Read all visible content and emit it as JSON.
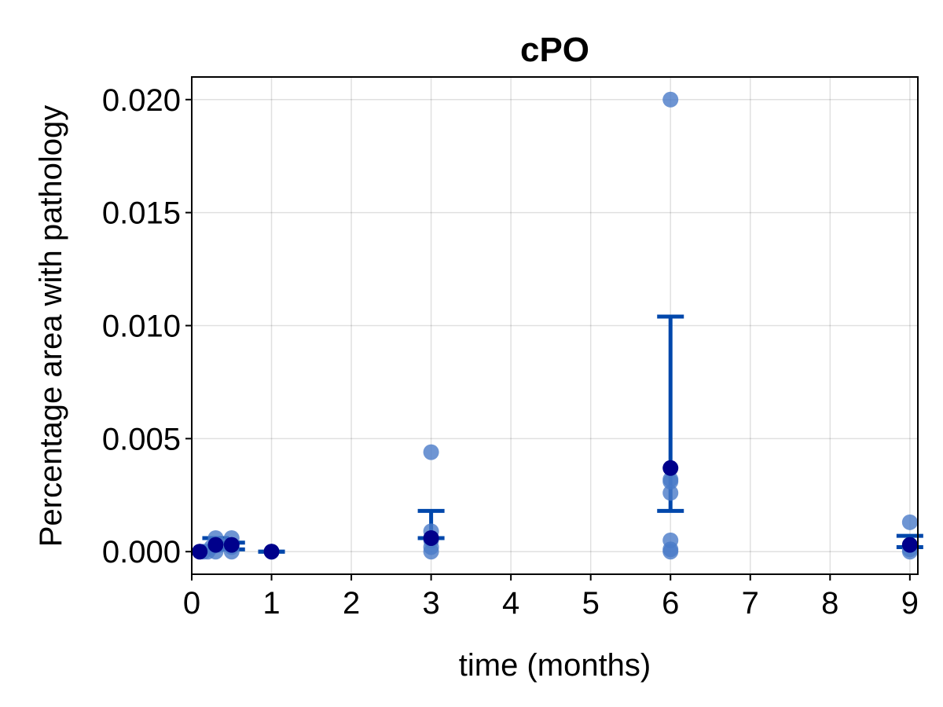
{
  "chart_data": {
    "type": "scatter",
    "title": "cPO",
    "xlabel": "time (months)",
    "ylabel": "Percentage area with pathology",
    "xlim": [
      0,
      9.1
    ],
    "ylim": [
      -0.001,
      0.021
    ],
    "xticks": [
      0,
      1,
      2,
      3,
      4,
      5,
      6,
      7,
      8,
      9
    ],
    "xtick_labels": [
      "0",
      "1",
      "2",
      "3",
      "4",
      "5",
      "6",
      "7",
      "8",
      "9"
    ],
    "yticks": [
      0,
      0.005,
      0.01,
      0.015,
      0.02
    ],
    "ytick_labels": [
      "0.000",
      "0.005",
      "0.010",
      "0.015",
      "0.020"
    ],
    "grid": true,
    "point_color": "#4a7bc8",
    "mean_point_color": "#00008b",
    "errorbar_color": "#0047ab",
    "points": [
      {
        "x": 0.1,
        "y": 0.0
      },
      {
        "x": 0.15,
        "y": 0.0
      },
      {
        "x": 0.2,
        "y": 0.0
      },
      {
        "x": 0.25,
        "y": 0.0002
      },
      {
        "x": 0.3,
        "y": 0.0006
      },
      {
        "x": 0.3,
        "y": 0.0
      },
      {
        "x": 0.35,
        "y": 0.0003
      },
      {
        "x": 0.5,
        "y": 0.0006
      },
      {
        "x": 0.5,
        "y": 0.0002
      },
      {
        "x": 0.5,
        "y": 0.0
      },
      {
        "x": 1,
        "y": 0.0
      },
      {
        "x": 1,
        "y": 0.0
      },
      {
        "x": 3,
        "y": 0.0044
      },
      {
        "x": 3,
        "y": 0.0009
      },
      {
        "x": 3,
        "y": 0.0005
      },
      {
        "x": 3,
        "y": 0.0002
      },
      {
        "x": 3,
        "y": 0.0
      },
      {
        "x": 6,
        "y": 0.02
      },
      {
        "x": 6,
        "y": 0.0032
      },
      {
        "x": 6,
        "y": 0.0031
      },
      {
        "x": 6,
        "y": 0.0026
      },
      {
        "x": 6,
        "y": 0.0005
      },
      {
        "x": 6,
        "y": 0.0001
      },
      {
        "x": 6,
        "y": 0.0
      },
      {
        "x": 9,
        "y": 0.0013
      },
      {
        "x": 9,
        "y": 0.0003
      },
      {
        "x": 9,
        "y": 0.0001
      },
      {
        "x": 9,
        "y": 0.0
      }
    ],
    "means": [
      {
        "x": 0.1,
        "y": 0.0
      },
      {
        "x": 0.3,
        "y": 0.0003
      },
      {
        "x": 0.5,
        "y": 0.0003
      },
      {
        "x": 1,
        "y": 0.0
      },
      {
        "x": 3,
        "y": 0.0006
      },
      {
        "x": 6,
        "y": 0.0037
      },
      {
        "x": 9,
        "y": 0.0003
      }
    ],
    "errorbars": [
      {
        "x": 0.3,
        "low": 0.0001,
        "high": 0.0006
      },
      {
        "x": 0.5,
        "low": 0.0001,
        "high": 0.0004
      },
      {
        "x": 1,
        "low": 0.0,
        "high": 0.0
      },
      {
        "x": 3,
        "low": 0.0006,
        "high": 0.0018
      },
      {
        "x": 6,
        "low": 0.0018,
        "high": 0.0104
      },
      {
        "x": 9,
        "low": 0.0002,
        "high": 0.0007
      }
    ]
  }
}
